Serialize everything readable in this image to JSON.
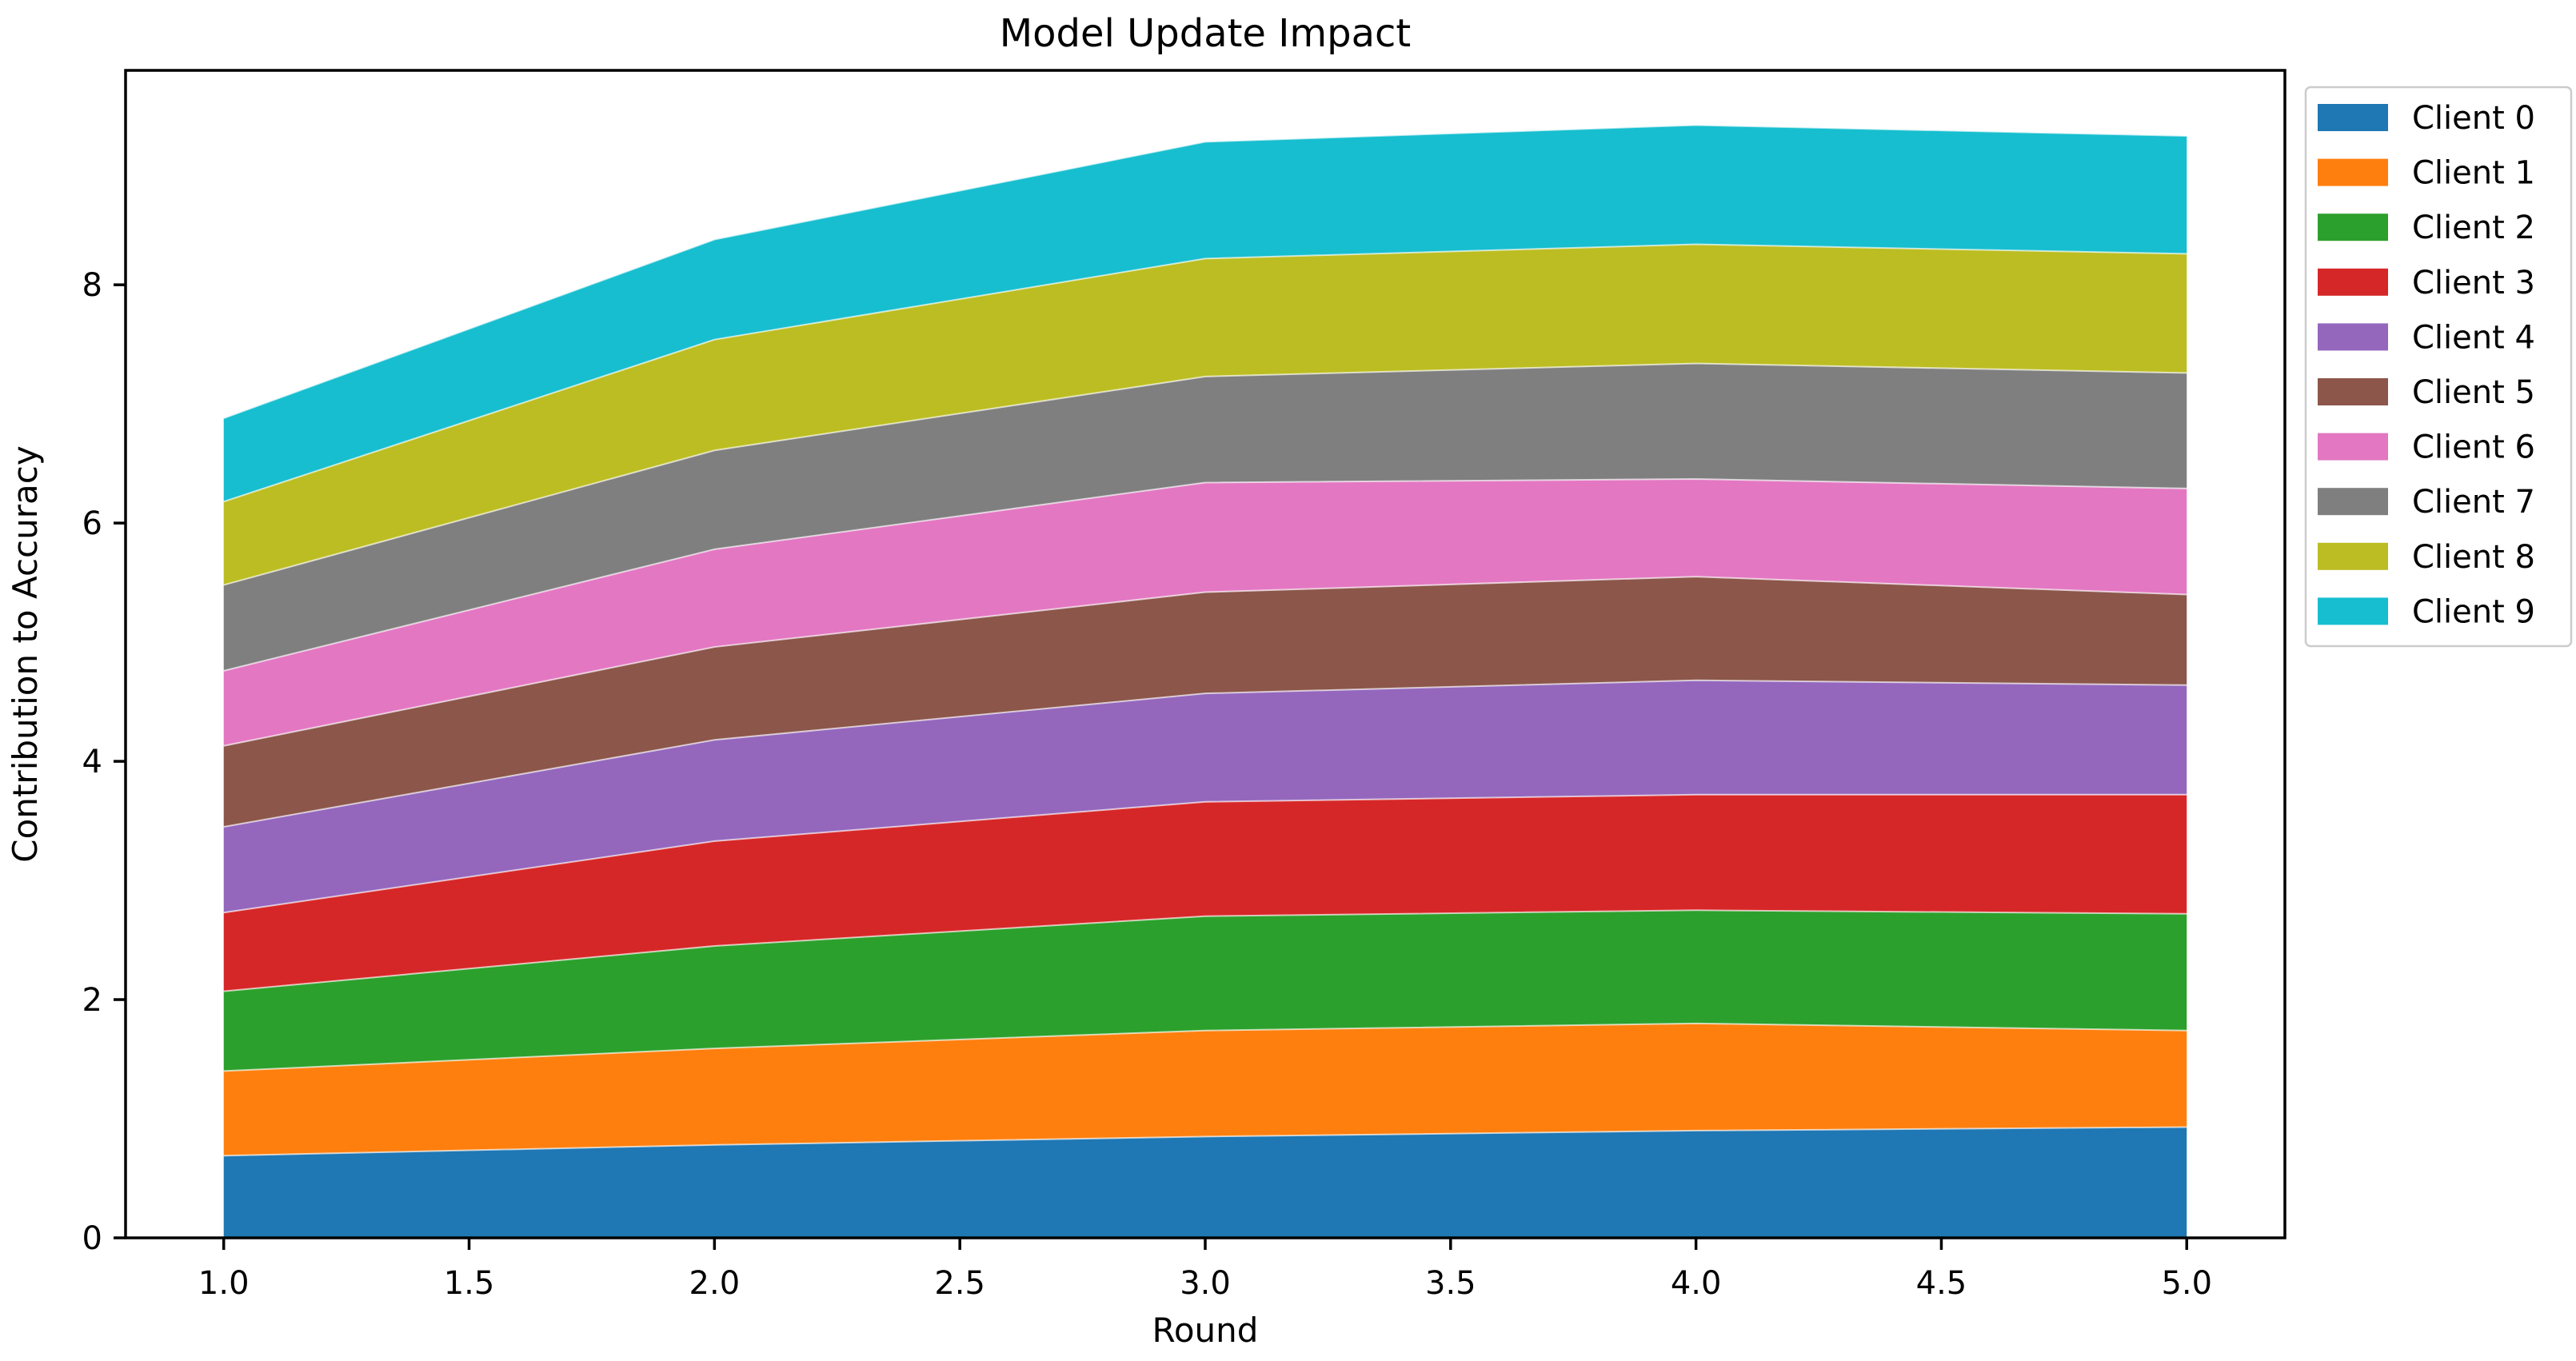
{
  "figure": {
    "background": "#ffffff",
    "spine_color": "#000000",
    "legend_frame_color": "#cccccc"
  },
  "chart_data": {
    "type": "area",
    "stacked": true,
    "title": "Model Update Impact",
    "xlabel": "Round",
    "ylabel": "Contribution to Accuracy",
    "x": [
      1,
      2,
      3,
      4,
      5
    ],
    "series": [
      {
        "name": "Client 0",
        "color": "#1f77b4",
        "values": [
          0.69,
          0.78,
          0.85,
          0.9,
          0.93
        ]
      },
      {
        "name": "Client 1",
        "color": "#ff7f0e",
        "values": [
          0.71,
          0.81,
          0.89,
          0.9,
          0.81
        ]
      },
      {
        "name": "Client 2",
        "color": "#2ca02c",
        "values": [
          0.67,
          0.86,
          0.96,
          0.95,
          0.98
        ]
      },
      {
        "name": "Client 3",
        "color": "#d62728",
        "values": [
          0.66,
          0.88,
          0.96,
          0.97,
          1.0
        ]
      },
      {
        "name": "Client 4",
        "color": "#9467bd",
        "values": [
          0.72,
          0.85,
          0.91,
          0.96,
          0.92
        ]
      },
      {
        "name": "Client 5",
        "color": "#8c564b",
        "values": [
          0.68,
          0.78,
          0.85,
          0.87,
          0.76
        ]
      },
      {
        "name": "Client 6",
        "color": "#e377c2",
        "values": [
          0.63,
          0.82,
          0.92,
          0.82,
          0.89
        ]
      },
      {
        "name": "Client 7",
        "color": "#7f7f7f",
        "values": [
          0.72,
          0.83,
          0.89,
          0.97,
          0.97
        ]
      },
      {
        "name": "Client 8",
        "color": "#bcbd22",
        "values": [
          0.7,
          0.93,
          0.99,
          1.0,
          1.0
        ]
      },
      {
        "name": "Client 9",
        "color": "#17becf",
        "values": [
          0.7,
          0.84,
          0.98,
          1.0,
          0.99
        ]
      }
    ],
    "stack_totals": [
      6.88,
      8.38,
      9.2,
      9.34,
      9.25
    ],
    "xticks": {
      "values": [
        1.0,
        1.5,
        2.0,
        2.5,
        3.0,
        3.5,
        4.0,
        4.5,
        5.0
      ],
      "labels": [
        "1.0",
        "1.5",
        "2.0",
        "2.5",
        "3.0",
        "3.5",
        "4.0",
        "4.5",
        "5.0"
      ]
    },
    "yticks": {
      "values": [
        0,
        2,
        4,
        6,
        8
      ],
      "labels": [
        "0",
        "2",
        "4",
        "6",
        "8"
      ]
    },
    "xlim": [
      0.8,
      5.2
    ],
    "ylim": [
      0,
      9.8
    ],
    "grid": false,
    "legend": {
      "position": "outside-top-right",
      "labels": [
        "Client 0",
        "Client 1",
        "Client 2",
        "Client 3",
        "Client 4",
        "Client 5",
        "Client 6",
        "Client 7",
        "Client 8",
        "Client 9"
      ]
    }
  }
}
